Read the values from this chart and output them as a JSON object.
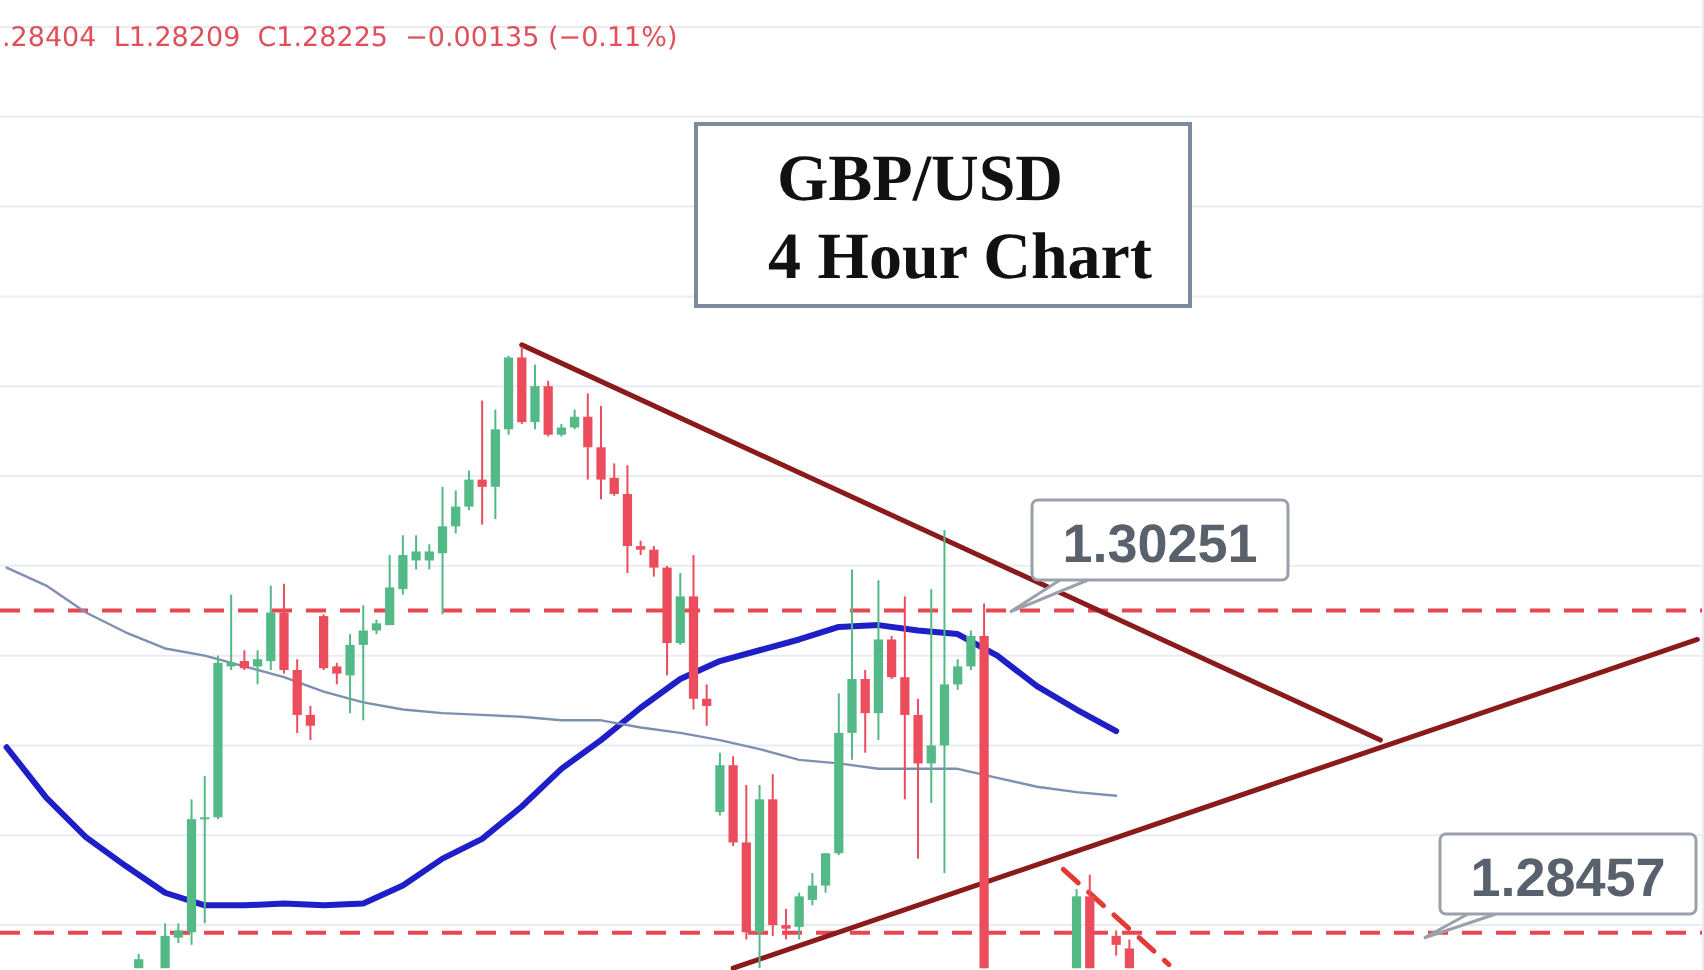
{
  "chart_data": {
    "type": "candlestick",
    "title": "GBP/USD",
    "subtitle": "4 Hour Chart",
    "annotations": [
      ".28404  L1.28209  C1.28225  −0.00135 (−0.11%)"
    ],
    "categories": [
      null,
      null,
      null,
      null,
      null,
      null,
      null,
      null,
      null,
      null,
      null,
      null,
      null,
      null,
      null,
      null,
      null,
      null,
      null,
      null,
      null,
      null,
      null,
      null,
      null,
      null,
      null,
      null,
      null,
      null,
      null,
      null,
      null,
      null,
      null,
      null,
      null,
      null,
      null,
      null,
      null,
      null,
      null,
      null,
      null,
      null,
      null,
      null,
      null,
      null,
      null,
      null,
      null,
      null,
      null,
      null,
      null,
      null,
      null,
      null,
      null,
      null,
      null,
      null,
      null,
      null,
      null,
      null,
      null,
      null,
      null,
      null,
      null,
      null,
      null,
      null,
      null,
      null,
      null,
      null,
      null,
      null,
      null,
      null,
      null,
      null,
      null,
      null,
      null,
      null,
      null,
      null,
      null,
      null,
      null,
      null,
      null,
      null,
      null,
      null,
      null,
      null,
      null,
      null,
      null,
      null,
      null,
      null,
      null,
      null,
      null,
      null,
      null,
      null,
      null,
      null,
      null,
      null,
      null,
      null,
      null,
      null,
      null,
      null,
      null,
      null,
      null,
      null,
      null
    ],
    "ohlc": [
      null,
      null,
      null,
      null,
      null,
      null,
      null,
      null,
      null,
      null,
      [
        1.2826,
        1.2834,
        1.2826,
        1.2831
      ],
      null,
      [
        1.2826,
        1.2851,
        1.2826,
        1.2844
      ],
      [
        1.2843,
        1.2851,
        1.284,
        1.2847
      ],
      [
        1.2846,
        1.292,
        1.2839,
        1.2909
      ],
      [
        1.2909,
        1.2933,
        1.2851,
        1.291
      ],
      [
        1.291,
        1.3,
        1.2909,
        1.2996
      ],
      [
        1.2994,
        1.3034,
        1.2992,
        1.2996
      ],
      [
        1.2997,
        1.3003,
        1.2992,
        1.2993
      ],
      [
        1.2994,
        1.3003,
        1.2984,
        1.2998
      ],
      [
        1.2997,
        1.3039,
        1.2992,
        1.3024
      ],
      [
        1.3024,
        1.304,
        1.299,
        1.2992
      ],
      [
        1.2992,
        1.2998,
        1.2957,
        1.2967
      ],
      [
        1.2967,
        1.2972,
        1.2953,
        1.2961
      ],
      [
        1.3022,
        1.3023,
        1.2992,
        1.2993
      ],
      [
        1.2994,
        1.2996,
        1.2984,
        1.299
      ],
      [
        1.2989,
        1.3012,
        1.2968,
        1.3006
      ],
      [
        1.3006,
        1.3028,
        1.2964,
        1.3014
      ],
      [
        1.3014,
        1.302,
        1.3012,
        1.3018
      ],
      [
        1.3017,
        1.3056,
        1.3017,
        1.3038
      ],
      [
        1.3037,
        1.3067,
        1.3034,
        1.3056
      ],
      [
        1.3053,
        1.3067,
        1.3048,
        1.3058
      ],
      [
        1.3053,
        1.3062,
        1.3048,
        1.3058
      ],
      [
        1.3057,
        1.3094,
        1.3023,
        1.3072
      ],
      [
        1.3072,
        1.3092,
        1.3068,
        1.3083
      ],
      [
        1.3083,
        1.3103,
        1.3081,
        1.3098
      ],
      [
        1.3098,
        1.3142,
        1.3073,
        1.3094
      ],
      [
        1.3094,
        1.3137,
        1.3076,
        1.3126
      ],
      [
        1.3126,
        1.3167,
        1.3123,
        1.3166
      ],
      [
        1.3166,
        1.3172,
        1.3129,
        1.313
      ],
      [
        1.313,
        1.3162,
        1.3126,
        1.315
      ],
      [
        1.315,
        1.3153,
        1.3122,
        1.3123
      ],
      [
        1.3123,
        1.3129,
        1.3122,
        1.3127
      ],
      [
        1.3127,
        1.3137,
        1.3126,
        1.3133
      ],
      [
        1.3133,
        1.3146,
        1.3098,
        1.3116
      ],
      [
        1.3116,
        1.3139,
        1.3087,
        1.3098
      ],
      [
        1.3099,
        1.3107,
        1.3089,
        1.309
      ],
      [
        1.309,
        1.3106,
        1.3046,
        1.3061
      ],
      [
        1.3061,
        1.3064,
        1.3056,
        1.3059
      ],
      [
        1.3059,
        1.3061,
        1.3044,
        1.3049
      ],
      [
        1.3049,
        1.305,
        1.2989,
        1.3007
      ],
      [
        1.3007,
        1.3046,
        1.3006,
        1.3033
      ],
      [
        1.3033,
        1.3056,
        1.297,
        1.2976
      ],
      [
        1.2976,
        1.2984,
        1.2961,
        1.2972
      ],
      [
        1.2913,
        1.2946,
        1.2911,
        1.2939
      ],
      [
        1.2939,
        1.2944,
        1.2894,
        1.2896
      ],
      [
        1.2896,
        1.2928,
        1.2842,
        1.2846
      ],
      [
        1.2846,
        1.2928,
        1.2826,
        1.292
      ],
      [
        1.292,
        1.2934,
        1.2844,
        1.285
      ],
      [
        1.285,
        1.2859,
        1.2842,
        1.2848
      ],
      [
        1.2849,
        1.2868,
        1.2842,
        1.2866
      ],
      [
        1.2864,
        1.2879,
        1.2861,
        1.2872
      ],
      [
        1.2872,
        1.289,
        1.2868,
        1.289
      ],
      [
        1.289,
        1.2979,
        1.2889,
        1.2957
      ],
      [
        1.2957,
        1.3048,
        1.2942,
        1.2987
      ],
      [
        1.2987,
        1.2992,
        1.2946,
        1.2968
      ],
      [
        1.2968,
        1.3042,
        1.2953,
        1.3009
      ],
      [
        1.3009,
        1.3011,
        1.2987,
        1.2988
      ],
      [
        1.2988,
        1.3033,
        1.292,
        1.2967
      ],
      [
        1.2967,
        1.2976,
        1.2887,
        1.294
      ],
      [
        1.294,
        1.3037,
        1.2918,
        1.295
      ],
      [
        1.295,
        1.307,
        1.2879,
        1.2984
      ],
      [
        1.2984,
        1.2998,
        1.2981,
        1.2994
      ],
      [
        1.2994,
        1.3014,
        1.2992,
        1.3011
      ],
      [
        1.3011,
        1.3029,
        1.2826,
        1.2826
      ],
      null,
      null,
      null,
      null,
      null,
      null,
      [
        1.2826,
        1.287,
        1.2826,
        1.2866
      ],
      [
        1.2866,
        1.2878,
        1.2826,
        1.2826
      ],
      null,
      [
        1.2844,
        1.2847,
        1.2833,
        1.2839
      ],
      [
        1.2837,
        1.2842,
        1.2826,
        1.2826
      ],
      null,
      null,
      null,
      null,
      null,
      null,
      null,
      null,
      null,
      null,
      null,
      null,
      null,
      null,
      null,
      null,
      null,
      null,
      null,
      null,
      null,
      null,
      null,
      null,
      null,
      null,
      null,
      null,
      null,
      null,
      null,
      null,
      null,
      null,
      null,
      null,
      null,
      null,
      null,
      null,
      null,
      null,
      null
    ],
    "series": [
      {
        "type": "line",
        "color": "#1f1fc8",
        "values": [
          1.2949,
          null,
          null,
          1.2921,
          null,
          null,
          1.2899,
          null,
          null,
          1.2883,
          null,
          null,
          1.2868,
          null,
          null,
          1.2861,
          null,
          null,
          1.2861,
          null,
          null,
          1.2862,
          null,
          null,
          1.2861,
          null,
          null,
          1.2862,
          null,
          null,
          1.2872,
          null,
          null,
          1.2887,
          null,
          null,
          1.2898,
          null,
          null,
          1.2916,
          null,
          null,
          1.2937,
          null,
          null,
          1.2953,
          null,
          null,
          1.2971,
          null,
          null,
          1.2987,
          null,
          null,
          1.2997,
          null,
          null,
          1.3003,
          null,
          null,
          1.3009,
          null,
          null,
          1.3016,
          null,
          null,
          1.3017,
          null,
          null,
          1.3014,
          null,
          null,
          1.3012,
          null,
          null,
          1.3,
          null,
          null,
          1.2983,
          null,
          null,
          1.297,
          null,
          null,
          1.2958,
          null,
          null,
          null,
          null,
          null,
          null,
          null,
          null,
          null,
          null,
          null,
          null,
          null,
          null,
          null,
          null,
          null,
          null,
          null,
          null,
          null,
          null,
          null,
          null,
          null,
          null,
          null,
          null,
          null,
          null,
          null,
          null,
          null,
          null,
          null,
          null,
          null,
          null,
          null,
          null,
          null,
          null,
          null,
          null
        ]
      },
      {
        "type": "line",
        "color": "#7f8fb2",
        "values": [
          1.3049,
          null,
          null,
          1.3039,
          null,
          null,
          1.3024,
          null,
          null,
          1.3013,
          null,
          null,
          1.3004,
          null,
          null,
          1.3,
          null,
          null,
          1.2994,
          null,
          null,
          1.2988,
          null,
          null,
          1.298,
          null,
          null,
          1.2974,
          null,
          null,
          1.297,
          null,
          null,
          1.2968,
          null,
          null,
          1.2967,
          null,
          null,
          1.2966,
          null,
          null,
          1.2964,
          null,
          null,
          1.2964,
          null,
          null,
          1.296,
          null,
          null,
          1.2957,
          null,
          null,
          1.2953,
          null,
          null,
          1.2948,
          null,
          null,
          1.2942,
          null,
          null,
          1.294,
          null,
          null,
          1.2937,
          null,
          null,
          1.2937,
          null,
          null,
          1.2937,
          null,
          null,
          1.2932,
          null,
          null,
          1.2927,
          null,
          null,
          1.2924,
          null,
          null,
          1.2922,
          null,
          null,
          null,
          null,
          null,
          null,
          null,
          null,
          null,
          null,
          null,
          null,
          null,
          null,
          null,
          null,
          null,
          null,
          null,
          null,
          null,
          null,
          null,
          null,
          null,
          null,
          null,
          null,
          null,
          null,
          null,
          null,
          null,
          null,
          null,
          null,
          null,
          null,
          null,
          null,
          null,
          null,
          null,
          null
        ]
      },
      {
        "type": "line",
        "color": "#8b1a1a",
        "values": [
          null,
          null,
          null,
          null,
          null,
          null,
          null,
          null,
          null,
          null,
          null,
          null,
          null,
          null,
          null,
          null,
          null,
          null,
          null,
          null,
          null,
          null,
          null,
          null,
          null,
          null,
          null,
          null,
          null,
          null,
          null,
          null,
          null,
          null,
          null,
          null,
          null,
          null,
          null,
          1.3173,
          null,
          null,
          null,
          null,
          null,
          null,
          null,
          null,
          null,
          null,
          null,
          null,
          null,
          null,
          null,
          null,
          null,
          null,
          null,
          null,
          null,
          null,
          null,
          null,
          null,
          null,
          null,
          null,
          null,
          null,
          null,
          null,
          null,
          null,
          null,
          null,
          null,
          null,
          null,
          null,
          null,
          null,
          null,
          null,
          null,
          null,
          null,
          null,
          null,
          null,
          null,
          null,
          null,
          null,
          null,
          null,
          null,
          null,
          null,
          null,
          null,
          null,
          null,
          null,
          1.2953,
          null,
          null,
          null,
          null,
          null,
          null,
          null,
          null,
          null,
          null,
          null,
          null,
          null,
          null,
          null,
          null,
          null,
          null,
          null,
          null,
          null,
          null,
          null,
          null
        ]
      },
      {
        "type": "line",
        "color": "#8b1a1a",
        "values": [
          null,
          null,
          null,
          null,
          null,
          null,
          null,
          null,
          null,
          null,
          null,
          null,
          null,
          null,
          null,
          null,
          null,
          null,
          null,
          null,
          null,
          null,
          null,
          null,
          null,
          null,
          null,
          null,
          null,
          null,
          null,
          null,
          null,
          null,
          null,
          null,
          null,
          null,
          null,
          null,
          null,
          null,
          null,
          null,
          null,
          null,
          null,
          null,
          null,
          null,
          null,
          null,
          null,
          null,
          null,
          1.2826,
          null,
          null,
          null,
          null,
          null,
          null,
          null,
          null,
          null,
          null,
          null,
          null,
          null,
          null,
          null,
          null,
          null,
          null,
          null,
          null,
          null,
          null,
          null,
          null,
          null,
          null,
          null,
          null,
          null,
          null,
          null,
          null,
          null,
          null,
          null,
          null,
          null,
          null,
          null,
          null,
          null,
          null,
          null,
          null,
          null,
          null,
          null,
          null,
          null,
          null,
          null,
          null,
          null,
          null,
          null,
          null,
          null,
          null,
          null,
          null,
          null,
          null,
          null,
          null,
          null,
          null,
          null,
          null,
          null,
          null,
          null,
          null,
          1.3009
        ]
      },
      {
        "type": "line",
        "color": "#e53935",
        "line_style": "dashed",
        "values": [
          null,
          null,
          null,
          null,
          null,
          null,
          null,
          null,
          null,
          null,
          null,
          null,
          null,
          null,
          null,
          null,
          null,
          null,
          null,
          null,
          null,
          null,
          null,
          null,
          null,
          null,
          null,
          null,
          null,
          null,
          null,
          null,
          null,
          null,
          null,
          null,
          null,
          null,
          null,
          null,
          null,
          null,
          null,
          null,
          null,
          null,
          null,
          null,
          null,
          null,
          null,
          null,
          null,
          null,
          null,
          null,
          null,
          null,
          null,
          null,
          null,
          null,
          null,
          null,
          null,
          null,
          null,
          null,
          null,
          null,
          null,
          null,
          null,
          null,
          null,
          null,
          null,
          null,
          null,
          null,
          1.2881,
          null,
          null,
          null,
          null,
          null,
          null,
          null,
          1.2828,
          null,
          null,
          null,
          null,
          null,
          null,
          null,
          null,
          null,
          null,
          null,
          null,
          null,
          null,
          null,
          null,
          null,
          null,
          null,
          null,
          null,
          null,
          null,
          null,
          null,
          null,
          null,
          null,
          null,
          null,
          null,
          null,
          null,
          null,
          null,
          null,
          null,
          null,
          null,
          null
        ]
      }
    ],
    "ref_lines": [
      {
        "axis": "y",
        "value": 1.30251,
        "label": "1.30251",
        "color": "#e8474f",
        "line_style": "dashed"
      },
      {
        "axis": "y",
        "value": 1.28457,
        "label": "1.28457",
        "color": "#e8474f",
        "line_style": "dashed"
      }
    ],
    "ylim": [
      1.2825,
      1.3365
    ],
    "yticks": [
      {
        "value": 1.285,
        "label": null
      },
      {
        "value": 1.29,
        "label": null
      },
      {
        "value": 1.295,
        "label": null
      },
      {
        "value": 1.3,
        "label": null
      },
      {
        "value": 1.305,
        "label": null
      },
      {
        "value": 1.31,
        "label": null
      },
      {
        "value": 1.315,
        "label": null
      },
      {
        "value": 1.32,
        "label": null
      },
      {
        "value": 1.325,
        "label": null
      },
      {
        "value": 1.33,
        "label": null
      },
      {
        "value": 1.335,
        "label": null
      }
    ],
    "grid": "y"
  }
}
